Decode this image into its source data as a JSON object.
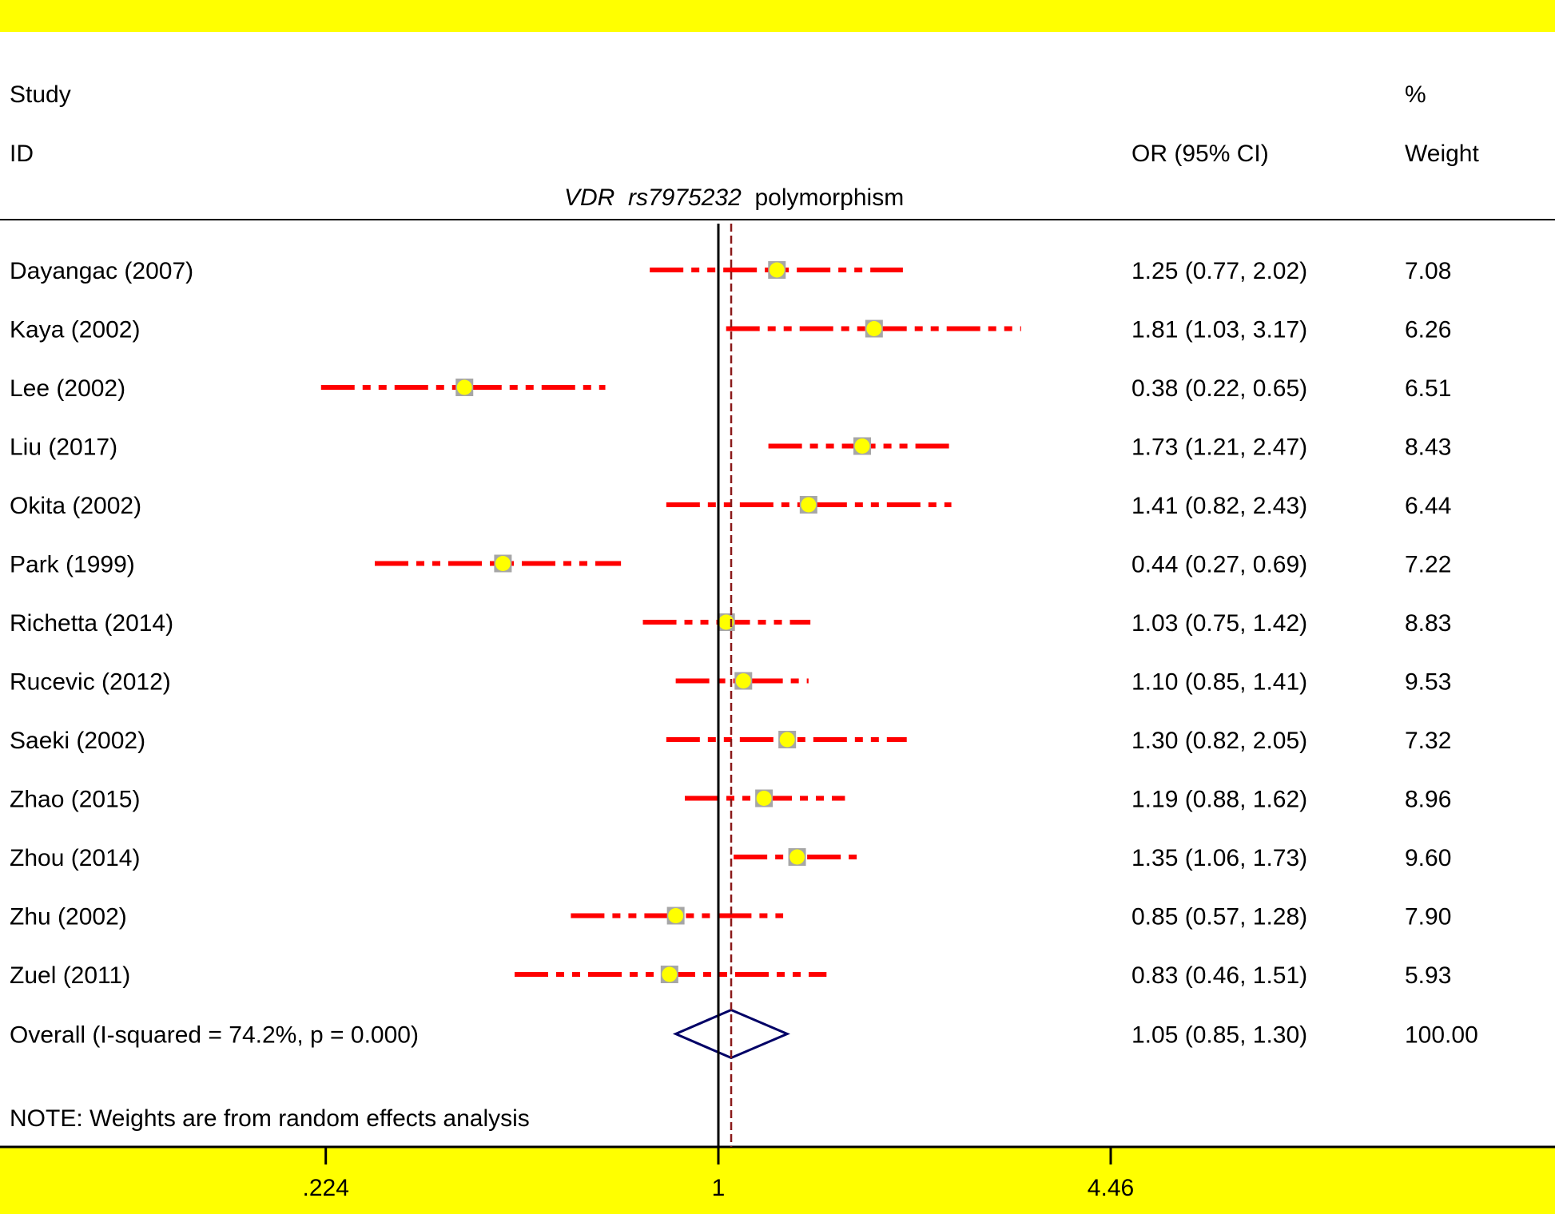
{
  "chart_data": {
    "type": "forest",
    "header": {
      "study_line1": "Study",
      "study_line2": "ID",
      "or_label": "OR (95% CI)",
      "weight_line1": "%",
      "weight_line2": "Weight"
    },
    "subtitle": {
      "italic_part": "VDR  rs7975232",
      "plain_part": "polymorphism"
    },
    "studies": [
      {
        "id": "Dayangac (2007)",
        "or": 1.25,
        "lo": 0.77,
        "hi": 2.02,
        "or_text": "1.25 (0.77, 2.02)",
        "weight": "7.08"
      },
      {
        "id": "Kaya (2002)",
        "or": 1.81,
        "lo": 1.03,
        "hi": 3.17,
        "or_text": "1.81 (1.03, 3.17)",
        "weight": "6.26"
      },
      {
        "id": "Lee (2002)",
        "or": 0.38,
        "lo": 0.22,
        "hi": 0.65,
        "or_text": "0.38 (0.22, 0.65)",
        "weight": "6.51"
      },
      {
        "id": "Liu (2017)",
        "or": 1.73,
        "lo": 1.21,
        "hi": 2.47,
        "or_text": "1.73 (1.21, 2.47)",
        "weight": "8.43"
      },
      {
        "id": "Okita (2002)",
        "or": 1.41,
        "lo": 0.82,
        "hi": 2.43,
        "or_text": "1.41 (0.82, 2.43)",
        "weight": "6.44"
      },
      {
        "id": "Park (1999)",
        "or": 0.44,
        "lo": 0.27,
        "hi": 0.69,
        "or_text": "0.44 (0.27, 0.69)",
        "weight": "7.22"
      },
      {
        "id": "Richetta (2014)",
        "or": 1.03,
        "lo": 0.75,
        "hi": 1.42,
        "or_text": "1.03 (0.75, 1.42)",
        "weight": "8.83"
      },
      {
        "id": "Rucevic (2012)",
        "or": 1.1,
        "lo": 0.85,
        "hi": 1.41,
        "or_text": "1.10 (0.85, 1.41)",
        "weight": "9.53"
      },
      {
        "id": "Saeki (2002)",
        "or": 1.3,
        "lo": 0.82,
        "hi": 2.05,
        "or_text": "1.30 (0.82, 2.05)",
        "weight": "7.32"
      },
      {
        "id": "Zhao (2015)",
        "or": 1.19,
        "lo": 0.88,
        "hi": 1.62,
        "or_text": "1.19 (0.88, 1.62)",
        "weight": "8.96"
      },
      {
        "id": "Zhou (2014)",
        "or": 1.35,
        "lo": 1.06,
        "hi": 1.73,
        "or_text": "1.35 (1.06, 1.73)",
        "weight": "9.60"
      },
      {
        "id": "Zhu (2002)",
        "or": 0.85,
        "lo": 0.57,
        "hi": 1.28,
        "or_text": "0.85 (0.57, 1.28)",
        "weight": "7.90"
      },
      {
        "id": "Zuel (2011)",
        "or": 0.83,
        "lo": 0.46,
        "hi": 1.51,
        "or_text": "0.83 (0.46, 1.51)",
        "weight": "5.93"
      }
    ],
    "overall": {
      "label": "Overall  (I-squared = 74.2%, p = 0.000)",
      "or": 1.05,
      "lo": 0.85,
      "hi": 1.3,
      "or_text": "1.05 (0.85, 1.30)",
      "weight": "100.00"
    },
    "note": "NOTE: Weights are from random effects analysis",
    "x_axis": {
      "scale": "log",
      "ticks": [
        {
          "value": 0.224,
          "label": ".224"
        },
        {
          "value": 1,
          "label": "1"
        },
        {
          "value": 4.46,
          "label": "4.46"
        }
      ],
      "range": [
        0.224,
        4.46
      ]
    },
    "null_line": 1,
    "colors": {
      "band": "#ffff00",
      "ci_line": "#ff0000",
      "marker_fill": "#ffff00",
      "marker_box": "#a6a6a6",
      "diamond": "#000066",
      "overall_line": "#8b1a1a"
    }
  }
}
